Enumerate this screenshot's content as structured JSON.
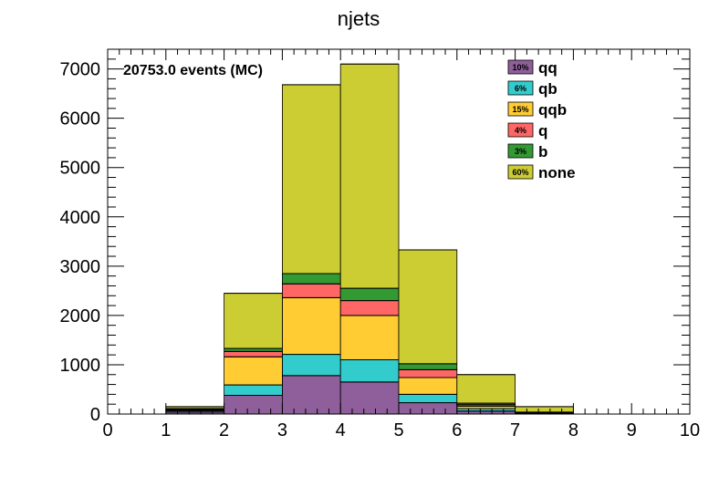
{
  "chart_data": {
    "type": "bar",
    "stacked": true,
    "title": "njets",
    "annotation": "20753.0 events (MC)",
    "x_edges": [
      0,
      1,
      2,
      3,
      4,
      5,
      6,
      7,
      8,
      9,
      10
    ],
    "xlim": [
      0,
      10
    ],
    "ylim": [
      0,
      7400
    ],
    "x_ticks": [
      0,
      1,
      2,
      3,
      4,
      5,
      6,
      7,
      8,
      9,
      10
    ],
    "y_ticks": [
      0,
      1000,
      2000,
      3000,
      4000,
      5000,
      6000,
      7000
    ],
    "x_tick_labels": [
      "0",
      "1",
      "2",
      "3",
      "4",
      "5",
      "6",
      "7",
      "8",
      "9",
      "10"
    ],
    "y_tick_labels": [
      "0",
      "1000",
      "2000",
      "3000",
      "4000",
      "5000",
      "6000",
      "7000"
    ],
    "grid": false,
    "legend_position": "top-right",
    "series": [
      {
        "name": "qq",
        "percent_label": "10%",
        "color": "#8e5f9a",
        "values": [
          0,
          40,
          380,
          780,
          650,
          230,
          60,
          10,
          0,
          0
        ]
      },
      {
        "name": "qb",
        "percent_label": "6%",
        "color": "#33cccc",
        "values": [
          0,
          25,
          210,
          430,
          450,
          170,
          50,
          10,
          0,
          0
        ]
      },
      {
        "name": "qqb",
        "percent_label": "15%",
        "color": "#ffcc33",
        "values": [
          0,
          20,
          570,
          1150,
          900,
          340,
          50,
          10,
          0,
          0
        ]
      },
      {
        "name": "q",
        "percent_label": "4%",
        "color": "#ff6666",
        "values": [
          0,
          10,
          110,
          280,
          300,
          160,
          30,
          5,
          0,
          0
        ]
      },
      {
        "name": "b",
        "percent_label": "3%",
        "color": "#339933",
        "values": [
          0,
          15,
          60,
          210,
          250,
          120,
          30,
          5,
          0,
          0
        ]
      },
      {
        "name": "none",
        "percent_label": "60%",
        "color": "#cccc33",
        "values": [
          0,
          40,
          1120,
          3830,
          4550,
          2310,
          580,
          110,
          0,
          0
        ]
      }
    ]
  }
}
